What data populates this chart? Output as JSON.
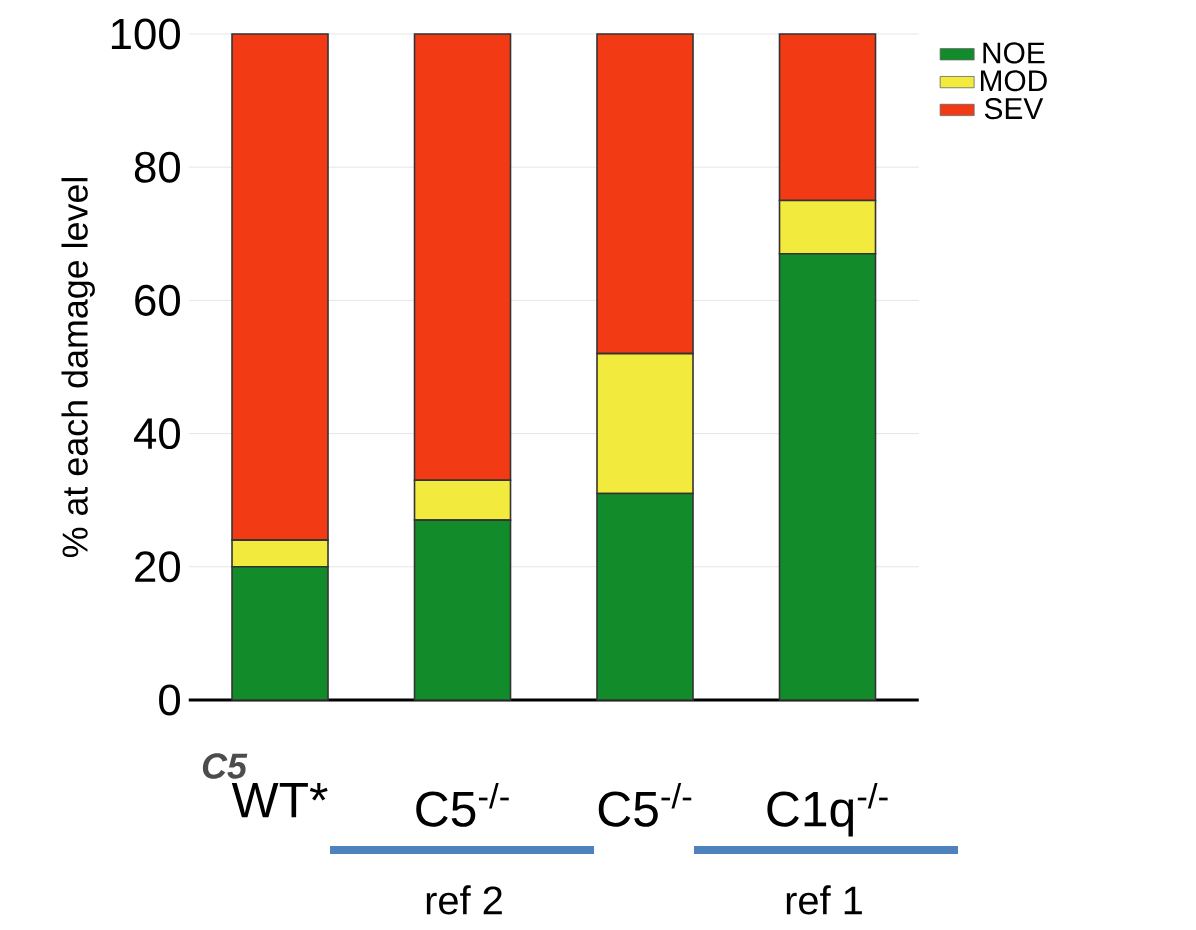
{
  "chart_data": {
    "type": "bar",
    "stacked": true,
    "ylabel": "% at each damage level",
    "categories": [
      "WT*",
      "C5$^{-/-}$",
      "C5$^{-/-}$",
      "C1q$^{-/-}$"
    ],
    "series": [
      {
        "name": "NOE",
        "color": "#128c2a",
        "values": [
          20,
          27,
          31,
          67
        ]
      },
      {
        "name": "MOD",
        "color": "#f2ea3c",
        "values": [
          4,
          6,
          21,
          8
        ]
      },
      {
        "name": "SEV",
        "color": "#f23a14",
        "values": [
          76,
          67,
          48,
          25
        ]
      }
    ],
    "ylim": [
      0,
      100
    ],
    "yticks": [
      0,
      20,
      40,
      60,
      80,
      100
    ],
    "grid": "y",
    "legend": "top right",
    "annotations": [
      "C5",
      "ref 2",
      "ref 1"
    ]
  }
}
